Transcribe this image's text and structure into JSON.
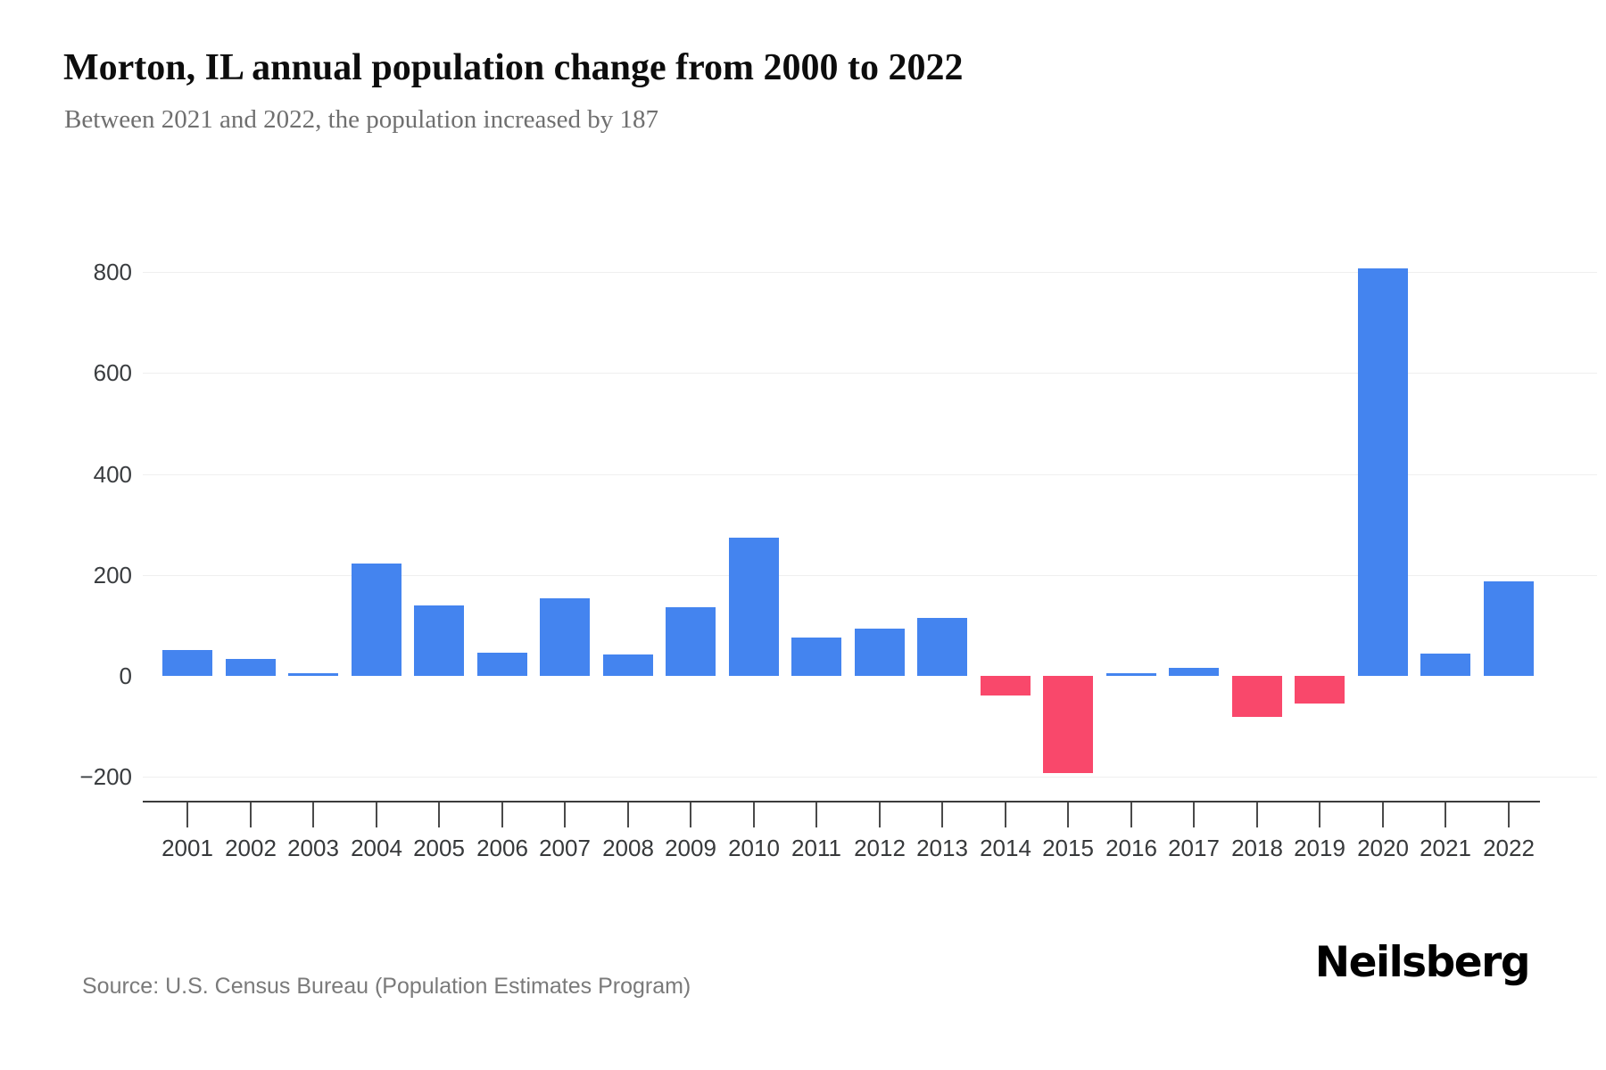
{
  "header": {
    "title": "Morton, IL annual population change from 2000 to 2022",
    "subtitle": "Between 2021 and 2022, the population increased by 187"
  },
  "chart_data": {
    "type": "bar",
    "title": "Morton, IL annual population change from 2000 to 2022",
    "series_name": "Annual population change",
    "categories": [
      "2001",
      "2002",
      "2003",
      "2004",
      "2005",
      "2006",
      "2007",
      "2008",
      "2009",
      "2010",
      "2011",
      "2012",
      "2013",
      "2014",
      "2015",
      "2016",
      "2017",
      "2018",
      "2019",
      "2020",
      "2021",
      "2022"
    ],
    "values": [
      51,
      33,
      5,
      222,
      140,
      46,
      154,
      43,
      136,
      274,
      76,
      94,
      115,
      -38,
      -192,
      5,
      16,
      -82,
      -54,
      808,
      45,
      187
    ],
    "positive_color": "#4484ef",
    "negative_color": "#f9486b",
    "yticks": [
      {
        "label": "800",
        "value": 800
      },
      {
        "label": "600",
        "value": 600
      },
      {
        "label": "400",
        "value": 400
      },
      {
        "label": "200",
        "value": 200
      },
      {
        "label": "0",
        "value": 0
      },
      {
        "label": "−200",
        "value": -200
      }
    ],
    "ylim": [
      -250,
      915
    ],
    "grid": "horizontal gridlines at labeled ticks except zero",
    "legend": "none",
    "xlabel": "",
    "ylabel": ""
  },
  "footer": {
    "source": "Source: U.S. Census Bureau (Population Estimates Program)",
    "brand": "Neilsberg"
  }
}
